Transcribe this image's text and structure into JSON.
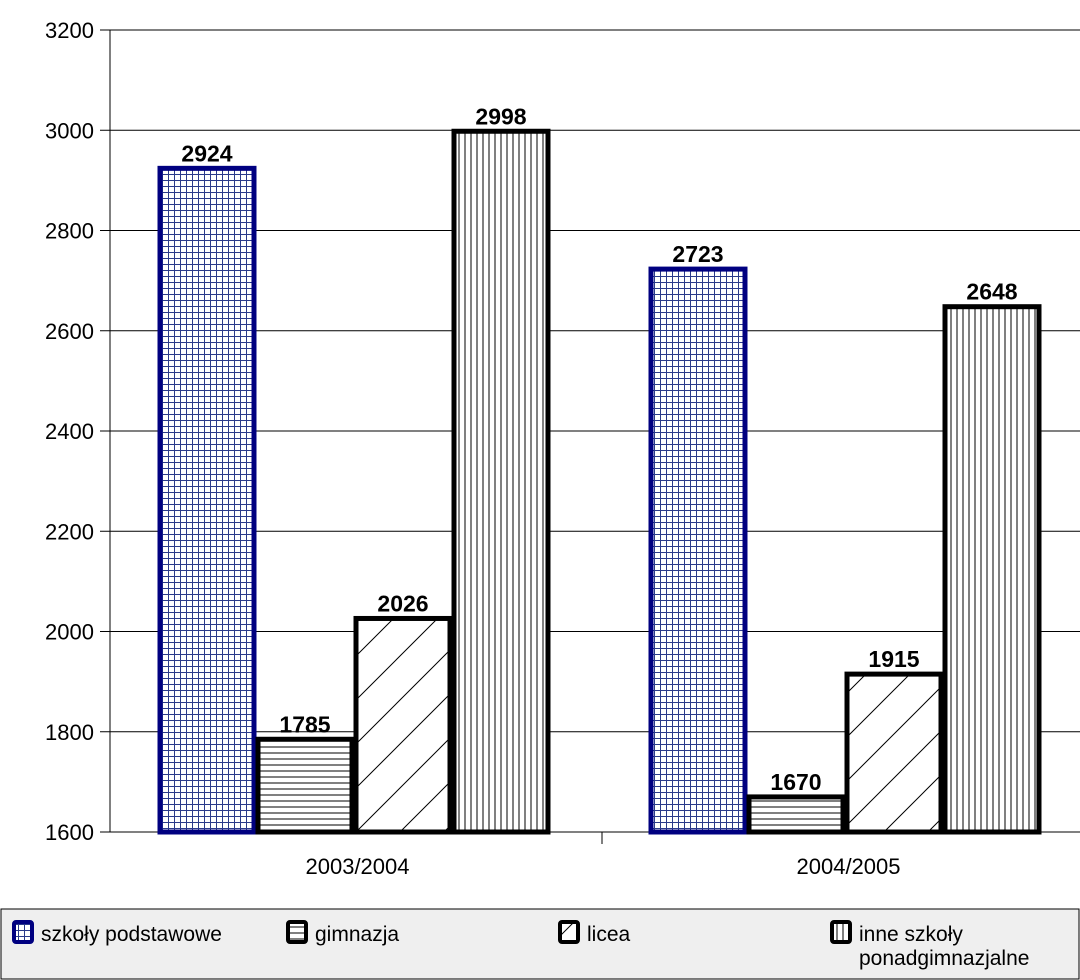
{
  "chart_data": {
    "type": "bar",
    "title": "",
    "xlabel": "",
    "ylabel": "",
    "ylim": [
      1600,
      3200
    ],
    "yticks": [
      1600,
      1800,
      2000,
      2200,
      2400,
      2600,
      2800,
      3000,
      3200
    ],
    "categories": [
      "2003/2004",
      "2004/2005"
    ],
    "grid": true,
    "legend_position": "bottom",
    "series": [
      {
        "name": "szkoły podstawowe",
        "values": [
          2924,
          2723
        ],
        "color": "#000080",
        "pattern": "grid"
      },
      {
        "name": "gimnazja",
        "values": [
          1785,
          1670
        ],
        "color": "#000000",
        "pattern": "horizontal"
      },
      {
        "name": "licea",
        "values": [
          2026,
          1915
        ],
        "color": "#000000",
        "pattern": "diagonal"
      },
      {
        "name": "inne szkoły ponadgimnazjalne",
        "values": [
          2998,
          2648
        ],
        "color": "#000000",
        "pattern": "vertical"
      }
    ],
    "legend_labels": [
      [
        "szkoły podstawowe"
      ],
      [
        "gimnazja"
      ],
      [
        "licea"
      ],
      [
        "inne szkoły",
        "ponadgimnazjalne"
      ]
    ]
  }
}
